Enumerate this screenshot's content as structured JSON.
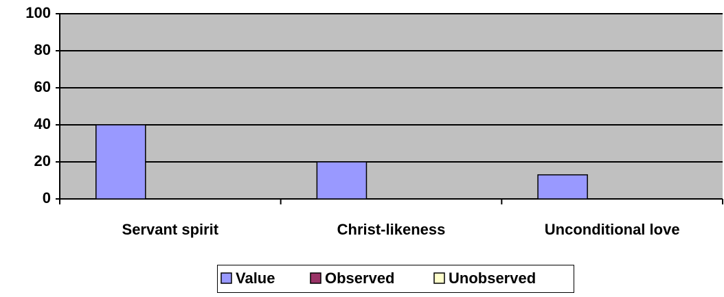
{
  "chart_data": {
    "type": "bar",
    "categories": [
      "Servant spirit",
      "Christ-likeness",
      "Unconditional love"
    ],
    "series": [
      {
        "name": "Value",
        "color": "#9999ff",
        "values": [
          40,
          20,
          13
        ]
      },
      {
        "name": "Observed",
        "color": "#993366",
        "values": [
          0,
          0,
          0
        ]
      },
      {
        "name": "Unobserved",
        "color": "#ffffcc",
        "values": [
          0,
          0,
          0
        ]
      }
    ],
    "ylim": [
      0,
      100
    ],
    "yticks": [
      0,
      20,
      40,
      60,
      80,
      100
    ],
    "grid": true,
    "legend": "bottom"
  }
}
